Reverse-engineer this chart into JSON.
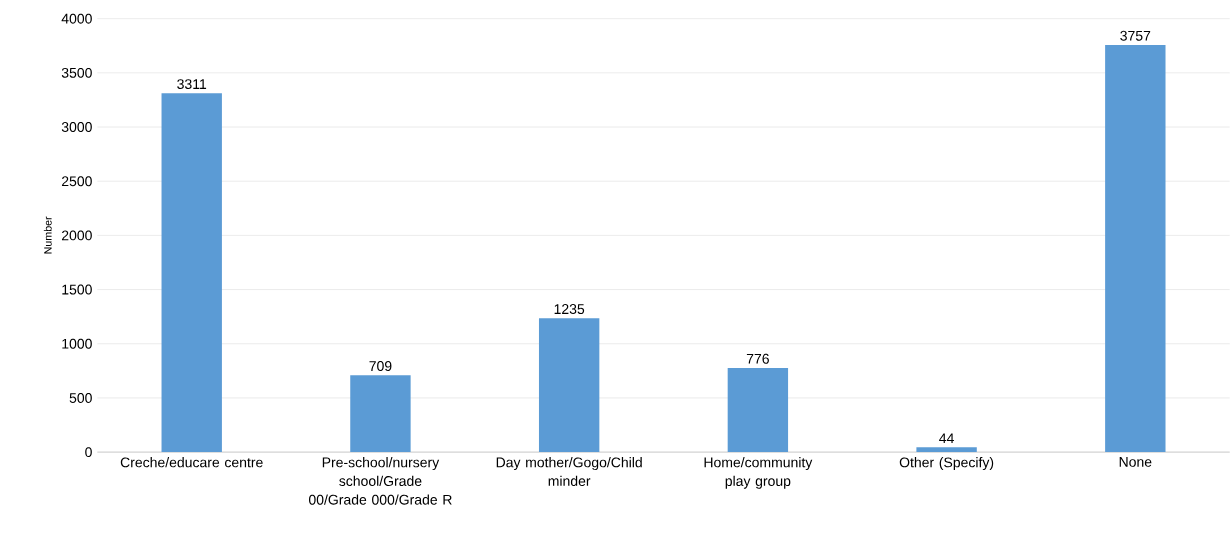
{
  "chart_data": {
    "type": "bar",
    "ylabel": "Number",
    "categories": [
      "Creche/educare centre",
      "Pre-school/nursery school/Grade 00/Grade 000/Grade R",
      "Day mother/Gogo/Child minder",
      "Home/community play group",
      "Other (Specify)",
      "None"
    ],
    "values": [
      3311,
      709,
      1235,
      776,
      44,
      3757
    ],
    "color": "#5b9bd5",
    "ylim": [
      0,
      4000
    ],
    "yticks": [
      0,
      500,
      1000,
      1500,
      2000,
      2500,
      3000,
      3500,
      4000
    ],
    "grid": "y",
    "data_labels": true
  }
}
